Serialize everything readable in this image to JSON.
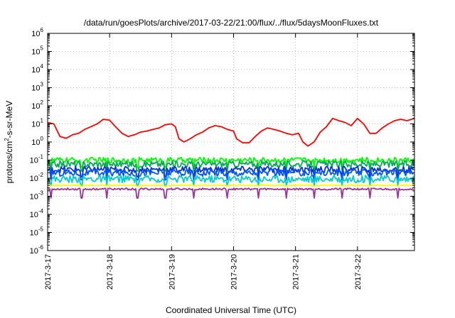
{
  "chart_data": {
    "type": "line",
    "title": "/data/run/goesPlots/archive/2017-03-22/21:00/flux/../flux/5daysMoonFluxes.txt",
    "xlabel": "Coordinated Universal Time (UTC)",
    "ylabel": {
      "main": "protons/cm",
      "sup": "2",
      "rest": "-s-sr-MeV"
    },
    "x_ticks": [
      "2017-3-17",
      "2017-3-18",
      "2017-3-19",
      "2017-3-20",
      "2017-3-21",
      "2017-3-22"
    ],
    "xlim_days": [
      0,
      5.92
    ],
    "y_scale": "log",
    "ylim_exp": [
      -6,
      6
    ],
    "y_tick_base": "10",
    "y_tick_exps": [
      "-6",
      "-5",
      "-4",
      "-3",
      "-2",
      "-1",
      "0",
      "1",
      "2",
      "3",
      "4",
      "5",
      "6"
    ],
    "grid": true,
    "legend": "none",
    "series": [
      {
        "color": "#ff0000",
        "points": [
          [
            0.0,
            12
          ],
          [
            0.1,
            10
          ],
          [
            0.2,
            2.0
          ],
          [
            0.3,
            1.6
          ],
          [
            0.4,
            2.5
          ],
          [
            0.5,
            3.0
          ],
          [
            0.6,
            5.0
          ],
          [
            0.7,
            7.0
          ],
          [
            0.8,
            10
          ],
          [
            0.9,
            18
          ],
          [
            1.0,
            16
          ],
          [
            1.08,
            8
          ],
          [
            1.2,
            3.0
          ],
          [
            1.3,
            2.0
          ],
          [
            1.4,
            2.5
          ],
          [
            1.5,
            3.5
          ],
          [
            1.6,
            4.0
          ],
          [
            1.7,
            5.0
          ],
          [
            1.8,
            6.0
          ],
          [
            1.9,
            9.0
          ],
          [
            2.0,
            10
          ],
          [
            2.06,
            7.0
          ],
          [
            2.12,
            1.5
          ],
          [
            2.2,
            1.0
          ],
          [
            2.3,
            1.5
          ],
          [
            2.4,
            2.5
          ],
          [
            2.5,
            3.5
          ],
          [
            2.6,
            6.0
          ],
          [
            2.7,
            8.0
          ],
          [
            2.8,
            7.0
          ],
          [
            2.9,
            5.0
          ],
          [
            3.0,
            4.0
          ],
          [
            3.05,
            1.5
          ],
          [
            3.15,
            0.9
          ],
          [
            3.25,
            0.9
          ],
          [
            3.35,
            2.0
          ],
          [
            3.45,
            4.0
          ],
          [
            3.55,
            6.0
          ],
          [
            3.65,
            5.0
          ],
          [
            3.75,
            4.0
          ],
          [
            3.85,
            3.0
          ],
          [
            3.95,
            2.5
          ],
          [
            4.05,
            3.0
          ],
          [
            4.12,
            1.0
          ],
          [
            4.2,
            0.6
          ],
          [
            4.3,
            1.0
          ],
          [
            4.4,
            3.5
          ],
          [
            4.5,
            7.0
          ],
          [
            4.6,
            20
          ],
          [
            4.7,
            15
          ],
          [
            4.8,
            12
          ],
          [
            4.9,
            8.0
          ],
          [
            5.0,
            20
          ],
          [
            5.1,
            10
          ],
          [
            5.2,
            3.0
          ],
          [
            5.3,
            3.0
          ],
          [
            5.4,
            6.0
          ],
          [
            5.5,
            10
          ],
          [
            5.6,
            15
          ],
          [
            5.7,
            18
          ],
          [
            5.8,
            15
          ],
          [
            5.92,
            20
          ]
        ]
      },
      {
        "color": "#00ff00",
        "base": 0.1,
        "dip": 0.04,
        "amp": 0.3
      },
      {
        "color": "#00aa55",
        "base": 0.06,
        "dip": 0.025,
        "amp": 0.35
      },
      {
        "color": "#0033cc",
        "base": 0.03,
        "dip": 0.012,
        "amp": 0.35
      },
      {
        "color": "#0055ff",
        "base": 0.02,
        "dip": 0.008,
        "amp": 0.4
      },
      {
        "color": "#00cccc",
        "base": 0.009,
        "dip": 0.004,
        "amp": 0.4
      },
      {
        "color": "#ffff00",
        "base": 0.004,
        "dip": 0.0035,
        "amp": 0.05
      },
      {
        "color": "#993399",
        "base": 0.0025,
        "dip": 0.0008,
        "amp": 0.1
      }
    ]
  }
}
